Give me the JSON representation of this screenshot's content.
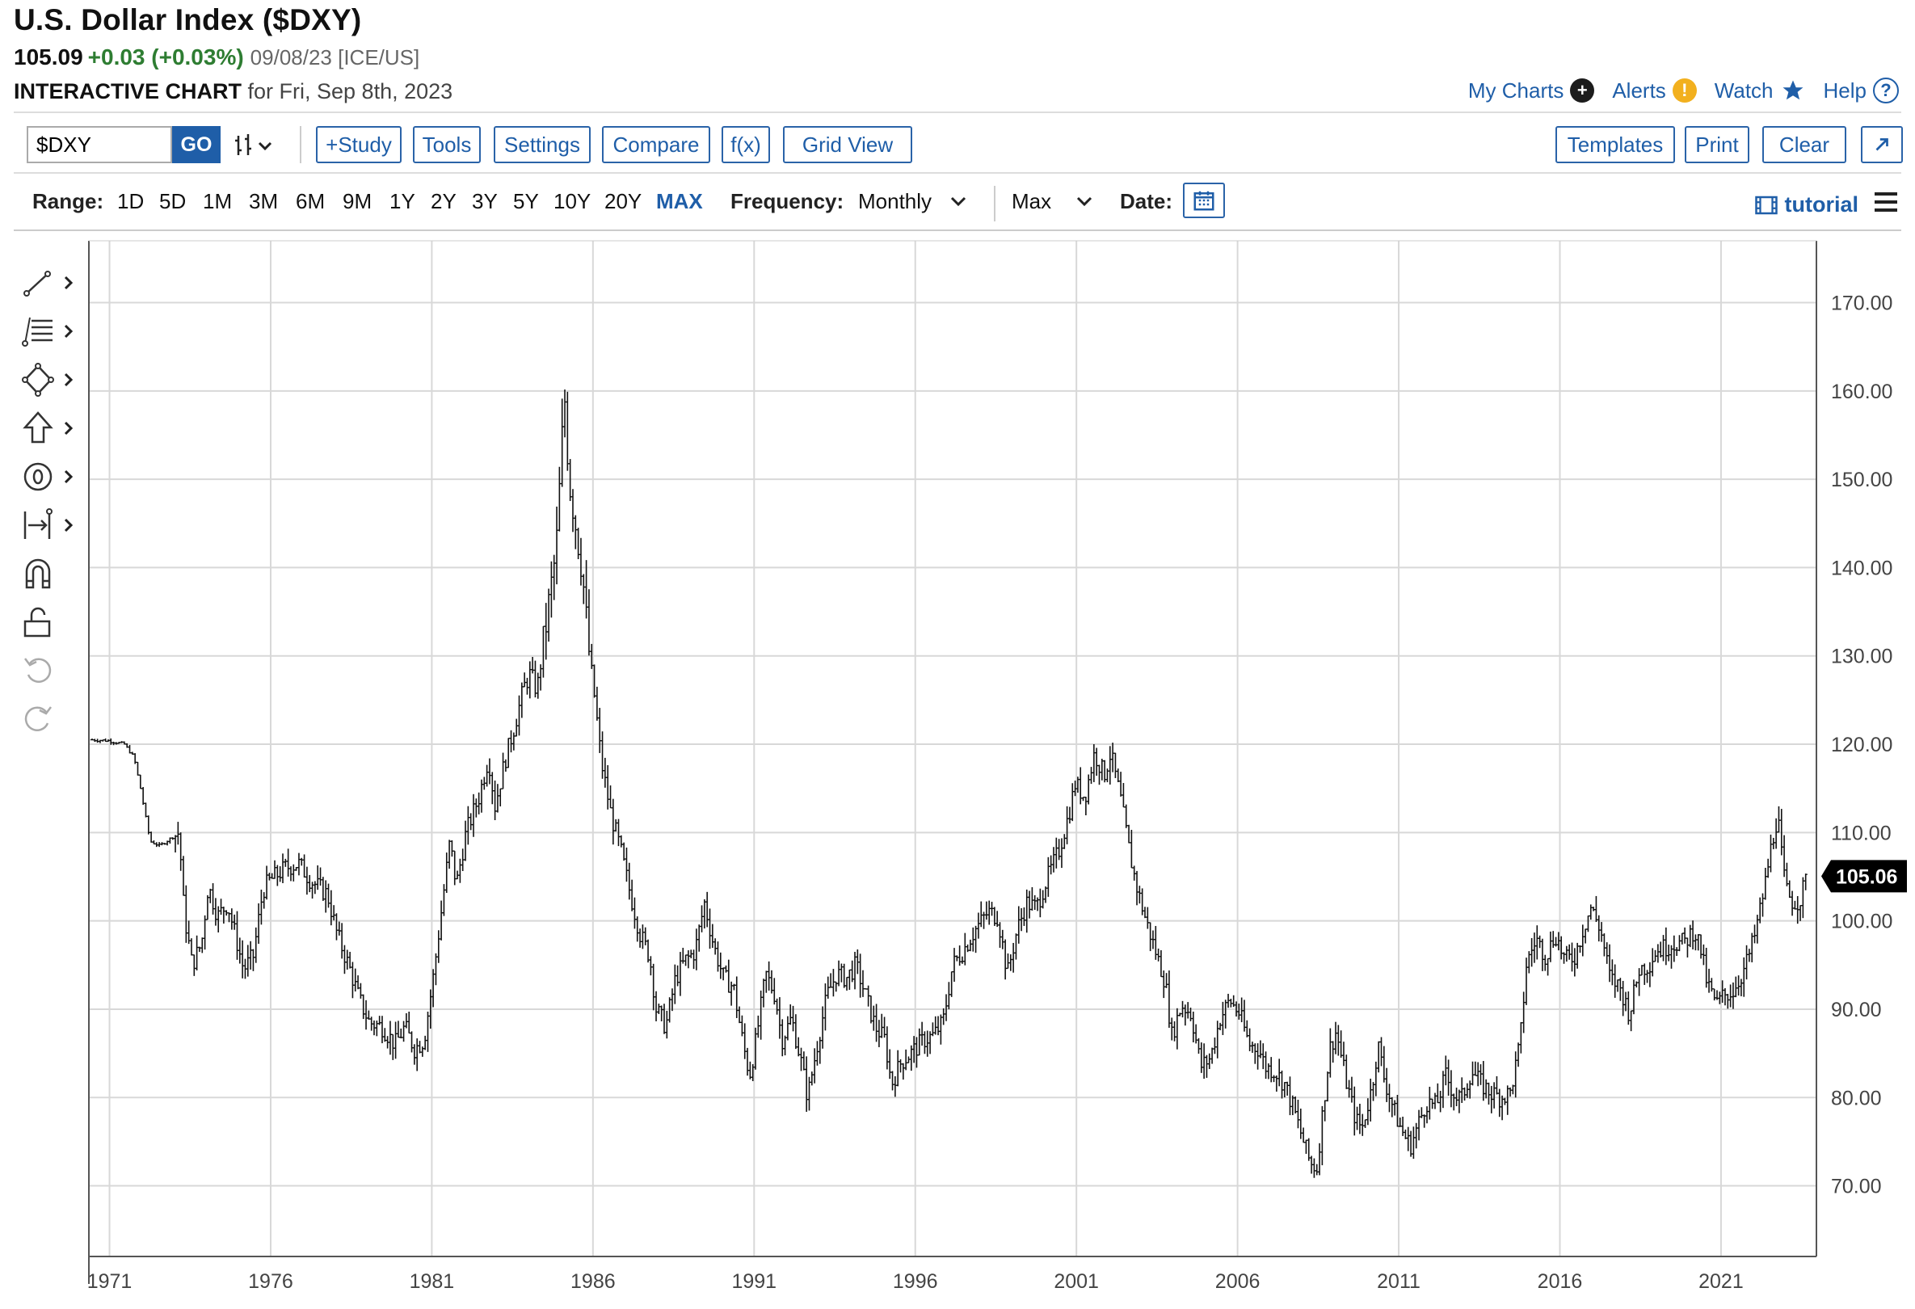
{
  "header": {
    "title": "U.S. Dollar Index ($DXY)",
    "price": "105.09",
    "change": "+0.03 (+0.03%)",
    "meta": "09/08/23 [ICE/US]",
    "subtitle_bold": "INTERACTIVE CHART",
    "subtitle_rest": "for Fri, Sep 8th, 2023"
  },
  "links": {
    "my_charts": "My Charts",
    "alerts": "Alerts",
    "watch": "Watch",
    "help": "Help"
  },
  "toolbar": {
    "symbol_value": "$DXY",
    "go": "GO",
    "study": "+Study",
    "tools": "Tools",
    "settings": "Settings",
    "compare": "Compare",
    "fx": "f(x)",
    "grid_view": "Grid View",
    "templates": "Templates",
    "print": "Print",
    "clear": "Clear",
    "expand_icon": "expand-arrow-icon"
  },
  "range": {
    "label": "Range:",
    "options": [
      "1D",
      "5D",
      "1M",
      "3M",
      "6M",
      "9M",
      "1Y",
      "2Y",
      "3Y",
      "5Y",
      "10Y",
      "20Y",
      "MAX"
    ],
    "selected": "MAX",
    "frequency_label": "Frequency:",
    "frequency_value": "Monthly",
    "period_value": "Max",
    "date_label": "Date:",
    "tutorial": "tutorial"
  },
  "colors": {
    "accent": "#1f5ea8",
    "positive": "#2e7d32",
    "grid": "#d8d8d8",
    "bar": "#111111",
    "last_badge": "#000000"
  },
  "chart_data": {
    "type": "ohlc",
    "title": "U.S. Dollar Index ($DXY)",
    "frequency": "Monthly",
    "xlabel": "",
    "ylabel": "",
    "ylim": [
      62,
      177
    ],
    "y_ticks": [
      "70.00",
      "80.00",
      "90.00",
      "100.00",
      "110.00",
      "120.00",
      "130.00",
      "140.00",
      "150.00",
      "160.00",
      "170.00"
    ],
    "y_tick_values": [
      70,
      80,
      90,
      100,
      110,
      120,
      130,
      140,
      150,
      160,
      170
    ],
    "x_ticks": [
      "1971",
      "1976",
      "1981",
      "1986",
      "1991",
      "1996",
      "2001",
      "2006",
      "2011",
      "2016",
      "2021"
    ],
    "x_tick_years": [
      1971,
      1976,
      1981,
      1986,
      1991,
      1996,
      2001,
      2006,
      2011,
      2016,
      2021
    ],
    "x_range": [
      1970.4,
      2024.0
    ],
    "grid": true,
    "last_value": "105.06",
    "close_series": [
      [
        1970.5,
        120.5
      ],
      [
        1971.0,
        120.4
      ],
      [
        1971.5,
        120.0
      ],
      [
        1971.8,
        118.5
      ],
      [
        1972.0,
        115.0
      ],
      [
        1972.3,
        109.0
      ],
      [
        1972.6,
        108.5
      ],
      [
        1973.0,
        109.5
      ],
      [
        1973.2,
        110.0
      ],
      [
        1973.35,
        101.0
      ],
      [
        1973.6,
        95.0
      ],
      [
        1973.9,
        97.5
      ],
      [
        1974.1,
        104.0
      ],
      [
        1974.4,
        100.5
      ],
      [
        1974.7,
        102.0
      ],
      [
        1974.9,
        99.0
      ],
      [
        1975.2,
        94.5
      ],
      [
        1975.5,
        96.0
      ],
      [
        1975.8,
        103.5
      ],
      [
        1976.0,
        104.5
      ],
      [
        1976.5,
        106.0
      ],
      [
        1976.9,
        106.5
      ],
      [
        1977.3,
        104.5
      ],
      [
        1977.8,
        103.0
      ],
      [
        1978.1,
        98.5
      ],
      [
        1978.5,
        94.5
      ],
      [
        1978.8,
        91.0
      ],
      [
        1979.1,
        88.5
      ],
      [
        1979.5,
        88.0
      ],
      [
        1979.9,
        86.0
      ],
      [
        1980.2,
        88.0
      ],
      [
        1980.5,
        85.5
      ],
      [
        1980.8,
        86.5
      ],
      [
        1981.1,
        94.0
      ],
      [
        1981.3,
        100.0
      ],
      [
        1981.6,
        109.0
      ],
      [
        1981.8,
        104.0
      ],
      [
        1982.1,
        110.0
      ],
      [
        1982.5,
        114.0
      ],
      [
        1982.8,
        118.5
      ],
      [
        1983.0,
        113.0
      ],
      [
        1983.3,
        118.0
      ],
      [
        1983.6,
        122.0
      ],
      [
        1983.9,
        126.5
      ],
      [
        1984.1,
        128.0
      ],
      [
        1984.3,
        126.0
      ],
      [
        1984.6,
        134.0
      ],
      [
        1984.9,
        142.0
      ],
      [
        1985.05,
        152.0
      ],
      [
        1985.15,
        160.0
      ],
      [
        1985.3,
        150.0
      ],
      [
        1985.5,
        145.0
      ],
      [
        1985.7,
        140.0
      ],
      [
        1985.9,
        131.0
      ],
      [
        1986.1,
        125.0
      ],
      [
        1986.3,
        118.0
      ],
      [
        1986.6,
        112.0
      ],
      [
        1986.9,
        108.0
      ],
      [
        1987.2,
        103.0
      ],
      [
        1987.5,
        98.5
      ],
      [
        1987.8,
        96.0
      ],
      [
        1988.0,
        90.0
      ],
      [
        1988.3,
        88.0
      ],
      [
        1988.6,
        93.5
      ],
      [
        1988.9,
        95.5
      ],
      [
        1989.2,
        96.5
      ],
      [
        1989.5,
        102.0
      ],
      [
        1989.8,
        97.0
      ],
      [
        1990.1,
        93.5
      ],
      [
        1990.4,
        92.5
      ],
      [
        1990.7,
        86.0
      ],
      [
        1990.9,
        82.5
      ],
      [
        1991.1,
        86.5
      ],
      [
        1991.4,
        94.0
      ],
      [
        1991.7,
        91.5
      ],
      [
        1991.9,
        86.5
      ],
      [
        1992.2,
        89.0
      ],
      [
        1992.5,
        84.0
      ],
      [
        1992.7,
        80.0
      ],
      [
        1993.0,
        86.0
      ],
      [
        1993.3,
        91.5
      ],
      [
        1993.6,
        94.0
      ],
      [
        1993.9,
        93.5
      ],
      [
        1994.2,
        95.0
      ],
      [
        1994.5,
        91.5
      ],
      [
        1994.8,
        88.0
      ],
      [
        1995.1,
        86.5
      ],
      [
        1995.3,
        81.5
      ],
      [
        1995.6,
        84.0
      ],
      [
        1995.9,
        85.0
      ],
      [
        1996.3,
        86.5
      ],
      [
        1996.6,
        87.0
      ],
      [
        1996.9,
        88.5
      ],
      [
        1997.2,
        95.0
      ],
      [
        1997.5,
        96.5
      ],
      [
        1997.9,
        99.0
      ],
      [
        1998.3,
        101.0
      ],
      [
        1998.6,
        100.5
      ],
      [
        1998.9,
        94.0
      ],
      [
        1999.2,
        99.0
      ],
      [
        1999.5,
        102.0
      ],
      [
        1999.8,
        101.5
      ],
      [
        2000.1,
        104.5
      ],
      [
        2000.5,
        108.0
      ],
      [
        2000.8,
        112.0
      ],
      [
        2001.0,
        115.5
      ],
      [
        2001.3,
        114.0
      ],
      [
        2001.6,
        119.0
      ],
      [
        2001.9,
        116.5
      ],
      [
        2002.1,
        119.0
      ],
      [
        2002.4,
        114.0
      ],
      [
        2002.7,
        107.5
      ],
      [
        2002.9,
        104.0
      ],
      [
        2003.2,
        100.0
      ],
      [
        2003.5,
        96.5
      ],
      [
        2003.8,
        93.0
      ],
      [
        2004.0,
        87.0
      ],
      [
        2004.3,
        90.5
      ],
      [
        2004.6,
        89.5
      ],
      [
        2004.9,
        83.5
      ],
      [
        2005.2,
        84.5
      ],
      [
        2005.5,
        89.0
      ],
      [
        2005.8,
        91.0
      ],
      [
        2006.1,
        89.5
      ],
      [
        2006.4,
        86.0
      ],
      [
        2006.7,
        85.5
      ],
      [
        2006.9,
        83.5
      ],
      [
        2007.2,
        83.0
      ],
      [
        2007.5,
        81.5
      ],
      [
        2007.8,
        78.5
      ],
      [
        2008.0,
        76.0
      ],
      [
        2008.3,
        72.5
      ],
      [
        2008.5,
        72.0
      ],
      [
        2008.7,
        79.0
      ],
      [
        2008.9,
        85.5
      ],
      [
        2009.1,
        87.5
      ],
      [
        2009.4,
        82.0
      ],
      [
        2009.7,
        77.5
      ],
      [
        2009.9,
        76.5
      ],
      [
        2010.2,
        81.0
      ],
      [
        2010.4,
        86.0
      ],
      [
        2010.6,
        82.0
      ],
      [
        2010.9,
        78.5
      ],
      [
        2011.1,
        76.5
      ],
      [
        2011.4,
        74.5
      ],
      [
        2011.7,
        77.5
      ],
      [
        2011.9,
        79.5
      ],
      [
        2012.2,
        79.0
      ],
      [
        2012.5,
        82.5
      ],
      [
        2012.8,
        80.0
      ],
      [
        2013.0,
        80.0
      ],
      [
        2013.3,
        83.0
      ],
      [
        2013.6,
        81.5
      ],
      [
        2013.9,
        80.5
      ],
      [
        2014.2,
        80.0
      ],
      [
        2014.5,
        80.5
      ],
      [
        2014.8,
        86.0
      ],
      [
        2015.0,
        95.0
      ],
      [
        2015.3,
        98.0
      ],
      [
        2015.6,
        96.0
      ],
      [
        2015.9,
        98.5
      ],
      [
        2016.2,
        95.5
      ],
      [
        2016.5,
        96.0
      ],
      [
        2016.8,
        99.5
      ],
      [
        2017.0,
        101.5
      ],
      [
        2017.3,
        99.0
      ],
      [
        2017.6,
        93.5
      ],
      [
        2017.9,
        92.5
      ],
      [
        2018.2,
        89.5
      ],
      [
        2018.5,
        94.5
      ],
      [
        2018.8,
        95.0
      ],
      [
        2019.0,
        96.5
      ],
      [
        2019.3,
        97.0
      ],
      [
        2019.6,
        97.5
      ],
      [
        2019.9,
        97.5
      ],
      [
        2020.2,
        99.0
      ],
      [
        2020.4,
        97.0
      ],
      [
        2020.6,
        93.0
      ],
      [
        2020.9,
        90.5
      ],
      [
        2021.1,
        91.5
      ],
      [
        2021.4,
        92.0
      ],
      [
        2021.7,
        94.0
      ],
      [
        2021.9,
        96.0
      ],
      [
        2022.1,
        98.5
      ],
      [
        2022.4,
        104.0
      ],
      [
        2022.6,
        108.5
      ],
      [
        2022.8,
        112.0
      ],
      [
        2022.95,
        106.0
      ],
      [
        2023.1,
        103.0
      ],
      [
        2023.3,
        102.0
      ],
      [
        2023.5,
        102.5
      ],
      [
        2023.7,
        105.0
      ]
    ]
  }
}
